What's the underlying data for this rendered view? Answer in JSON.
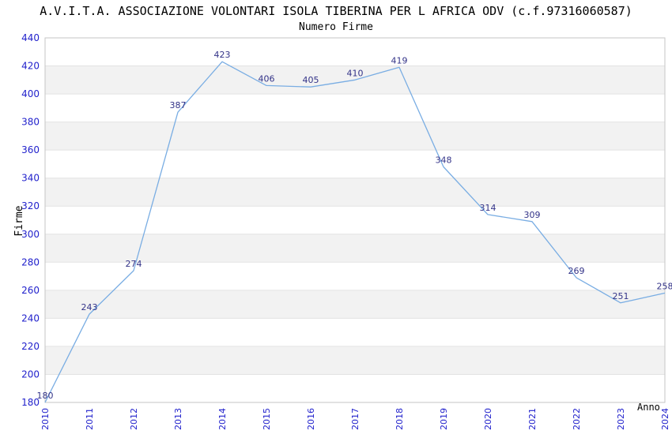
{
  "chart_data": {
    "type": "line",
    "title": "A.V.I.T.A. ASSOCIAZIONE VOLONTARI ISOLA TIBERINA PER L AFRICA ODV (c.f.97316060587)",
    "subtitle": "Numero Firme",
    "xlabel": "Anno",
    "ylabel": "Firme",
    "categories": [
      "2010",
      "2011",
      "2012",
      "2013",
      "2014",
      "2015",
      "2016",
      "2017",
      "2018",
      "2019",
      "2020",
      "2021",
      "2022",
      "2023",
      "2024"
    ],
    "series": [
      {
        "name": "Numero Firme",
        "values": [
          180,
          243,
          274,
          387,
          423,
          406,
          405,
          410,
          419,
          348,
          314,
          309,
          269,
          251,
          258
        ]
      }
    ],
    "point_labels_visible": true,
    "ylim": [
      180,
      440
    ],
    "ytick_step": 20,
    "grid": "horizontal alternating bands every 20 units",
    "legend_position": "none",
    "markers": "none",
    "colors": {
      "line": "#79ADE3",
      "tick_label": "#2222CC",
      "point_label": "#333388",
      "band_fill": "#F2F2F2",
      "gridline": "#E3E3E3",
      "plot_border": "#C6C6C6",
      "title_text": "#000000",
      "background": "#FFFFFF"
    }
  }
}
